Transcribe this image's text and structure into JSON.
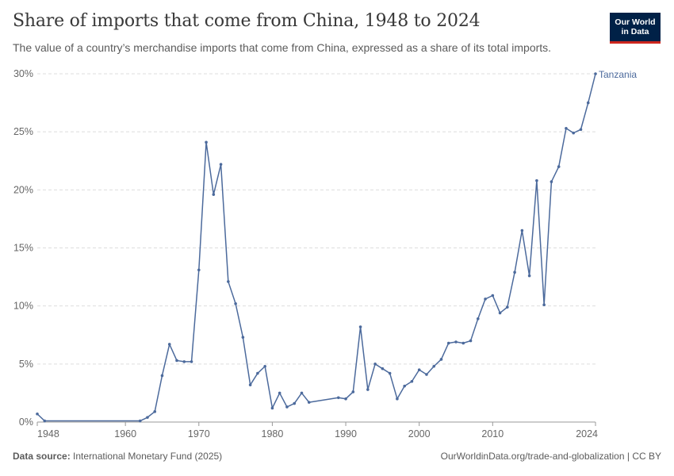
{
  "header": {
    "title": "Share of imports that come from China, 1948 to 2024",
    "subtitle": "The value of a country’s merchandise imports that come from China, expressed as a share of its total imports.",
    "logo_line1": "Our World",
    "logo_line2": "in Data"
  },
  "footer": {
    "source_label": "Data source:",
    "source_text": "International Monetary Fund (2025)",
    "right_text": "OurWorldinData.org/trade-and-globalization | CC BY"
  },
  "colors": {
    "series": "#4c6a9c",
    "grid": "#dddddd",
    "axis": "#999999",
    "logo_bg": "#002147",
    "logo_accent": "#ce261e"
  },
  "chart_data": {
    "type": "line",
    "title": "Share of imports that come from China, 1948 to 2024",
    "xlim": [
      1948,
      2024
    ],
    "ylim": [
      0,
      30
    ],
    "x_ticks": [
      1948,
      1960,
      1970,
      1980,
      1990,
      2000,
      2010,
      2024
    ],
    "y_ticks": [
      0,
      5,
      10,
      15,
      20,
      25,
      30
    ],
    "y_tick_labels": [
      "0%",
      "5%",
      "10%",
      "15%",
      "20%",
      "25%",
      "30%"
    ],
    "grid": "horizontal dashed",
    "series": [
      {
        "name": "Tanzania",
        "points": [
          [
            1948,
            0.7
          ],
          [
            1949,
            0.1
          ],
          [
            1962,
            0.1
          ],
          [
            1963,
            0.4
          ],
          [
            1964,
            0.9
          ],
          [
            1965,
            4.0
          ],
          [
            1966,
            6.7
          ],
          [
            1967,
            5.3
          ],
          [
            1968,
            5.2
          ],
          [
            1969,
            5.2
          ],
          [
            1970,
            13.1
          ],
          [
            1971,
            24.1
          ],
          [
            1972,
            19.6
          ],
          [
            1973,
            22.2
          ],
          [
            1974,
            12.1
          ],
          [
            1975,
            10.2
          ],
          [
            1976,
            7.3
          ],
          [
            1977,
            3.2
          ],
          [
            1978,
            4.2
          ],
          [
            1979,
            4.8
          ],
          [
            1980,
            1.2
          ],
          [
            1981,
            2.5
          ],
          [
            1982,
            1.3
          ],
          [
            1983,
            1.6
          ],
          [
            1984,
            2.5
          ],
          [
            1985,
            1.7
          ],
          [
            1989,
            2.1
          ],
          [
            1990,
            2.0
          ],
          [
            1991,
            2.6
          ],
          [
            1992,
            8.2
          ],
          [
            1993,
            2.8
          ],
          [
            1994,
            5.0
          ],
          [
            1995,
            4.6
          ],
          [
            1996,
            4.2
          ],
          [
            1997,
            2.0
          ],
          [
            1998,
            3.1
          ],
          [
            1999,
            3.5
          ],
          [
            2000,
            4.5
          ],
          [
            2001,
            4.1
          ],
          [
            2002,
            4.8
          ],
          [
            2003,
            5.4
          ],
          [
            2004,
            6.8
          ],
          [
            2005,
            6.9
          ],
          [
            2006,
            6.8
          ],
          [
            2007,
            7.0
          ],
          [
            2008,
            8.9
          ],
          [
            2009,
            10.6
          ],
          [
            2010,
            10.9
          ],
          [
            2011,
            9.4
          ],
          [
            2012,
            9.9
          ],
          [
            2013,
            12.9
          ],
          [
            2014,
            16.5
          ],
          [
            2015,
            12.6
          ],
          [
            2016,
            20.8
          ],
          [
            2017,
            10.1
          ],
          [
            2018,
            20.7
          ],
          [
            2019,
            22.0
          ],
          [
            2020,
            25.3
          ],
          [
            2021,
            24.9
          ],
          [
            2022,
            25.2
          ],
          [
            2023,
            27.5
          ],
          [
            2024,
            30.0
          ]
        ]
      }
    ]
  }
}
